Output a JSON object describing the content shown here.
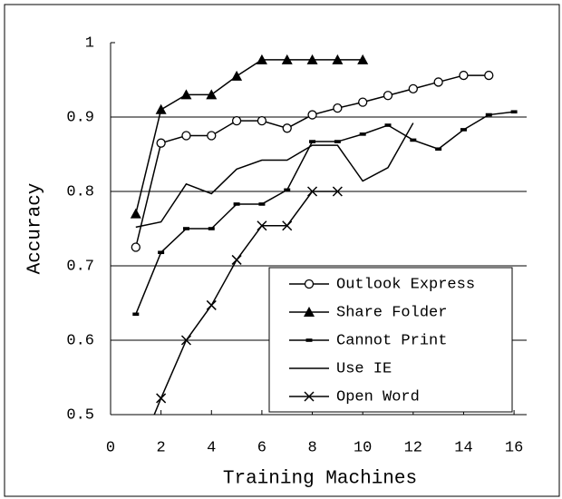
{
  "chart_data": {
    "type": "line",
    "xlabel": "Training Machines",
    "ylabel": "Accuracy",
    "xlim": [
      0,
      16.5
    ],
    "xticks": [
      0,
      2,
      4,
      6,
      8,
      10,
      12,
      14,
      16
    ],
    "ylim": [
      0.5,
      1
    ],
    "yticks": [
      0.5,
      0.6,
      0.7,
      0.8,
      0.9,
      1
    ],
    "grid": true,
    "legend": "lower right",
    "series": [
      {
        "name": "Outlook Express",
        "color": "#000000",
        "marker": "circle",
        "x": [
          1,
          2,
          3,
          4,
          5,
          6,
          7,
          8,
          9,
          10,
          11,
          12,
          13,
          14,
          15
        ],
        "values": [
          0.725,
          0.865,
          0.875,
          0.875,
          0.895,
          0.895,
          0.885,
          0.903,
          0.912,
          0.92,
          0.929,
          0.938,
          0.947,
          0.956,
          0.956
        ]
      },
      {
        "name": "Share Folder",
        "color": "#000000",
        "marker": "triangle",
        "x": [
          1,
          2,
          3,
          4,
          5,
          6,
          7,
          8,
          9,
          10
        ],
        "values": [
          0.77,
          0.91,
          0.93,
          0.93,
          0.955,
          0.977,
          0.977,
          0.977,
          0.977,
          0.977
        ]
      },
      {
        "name": "Cannot Print",
        "color": "#000000",
        "marker": "dash",
        "x": [
          1,
          2,
          3,
          4,
          5,
          6,
          7,
          8,
          9,
          10,
          11,
          12,
          13,
          14,
          15,
          16
        ],
        "values": [
          0.635,
          0.718,
          0.75,
          0.75,
          0.783,
          0.783,
          0.802,
          0.867,
          0.867,
          0.877,
          0.889,
          0.869,
          0.857,
          0.883,
          0.903,
          0.907
        ]
      },
      {
        "name": "Use IE",
        "color": "#000000",
        "marker": "none",
        "x": [
          1,
          2,
          3,
          4,
          5,
          6,
          7,
          8,
          9,
          10,
          11,
          12
        ],
        "values": [
          0.752,
          0.759,
          0.81,
          0.797,
          0.83,
          0.842,
          0.842,
          0.862,
          0.862,
          0.814,
          0.832,
          0.892
        ]
      },
      {
        "name": "Open Word",
        "color": "#000000",
        "marker": "x",
        "x": [
          1,
          2,
          3,
          4,
          5,
          6,
          7,
          8,
          9
        ],
        "values": [
          0.44,
          0.522,
          0.6,
          0.647,
          0.708,
          0.754,
          0.754,
          0.8,
          0.8
        ]
      }
    ]
  }
}
